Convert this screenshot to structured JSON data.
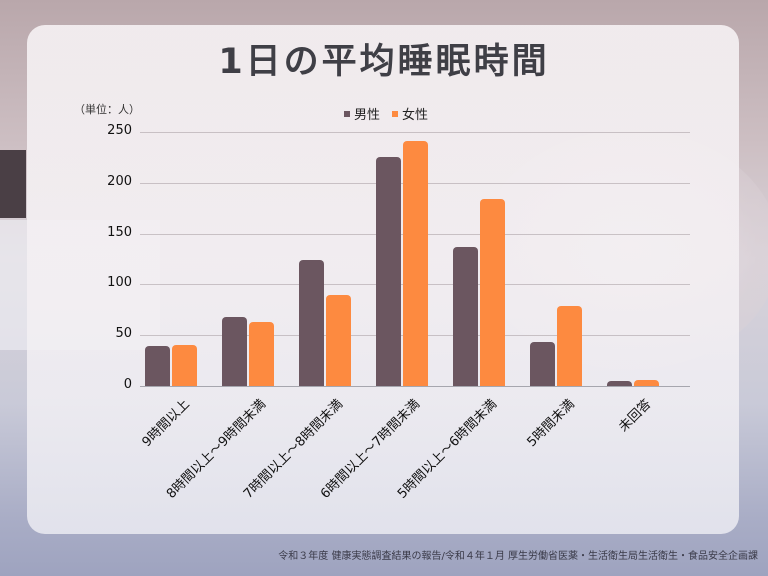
{
  "title": "1日の平均睡眠時間",
  "unit_label": "（単位：人）",
  "legend": [
    {
      "label": "男性",
      "color": "#6b5660"
    },
    {
      "label": "女性",
      "color": "#fd8a40"
    }
  ],
  "source": "令和３年度 健康実態調査結果の報告/令和４年１月 厚生労働省医薬・生活衛生局生活衛生・食品安全企画課",
  "chart_data": {
    "type": "bar",
    "title": "1日の平均睡眠時間",
    "xlabel": "",
    "ylabel": "（単位：人）",
    "ylim": [
      0,
      250
    ],
    "yticks": [
      0,
      50,
      100,
      150,
      200,
      250
    ],
    "grid": true,
    "legend_position": "top",
    "categories": [
      "9時間以上",
      "8時間以上～9時間未満",
      "7時間以上～8時間未満",
      "6時間以上～7時間未満",
      "5時間以上～6時間未満",
      "5時間未満",
      "未回答"
    ],
    "series": [
      {
        "name": "男性",
        "color": "#6b5660",
        "values": [
          39,
          68,
          124,
          225,
          137,
          43,
          5
        ]
      },
      {
        "name": "女性",
        "color": "#fd8a40",
        "values": [
          40,
          63,
          90,
          241,
          184,
          79,
          6
        ]
      }
    ]
  }
}
